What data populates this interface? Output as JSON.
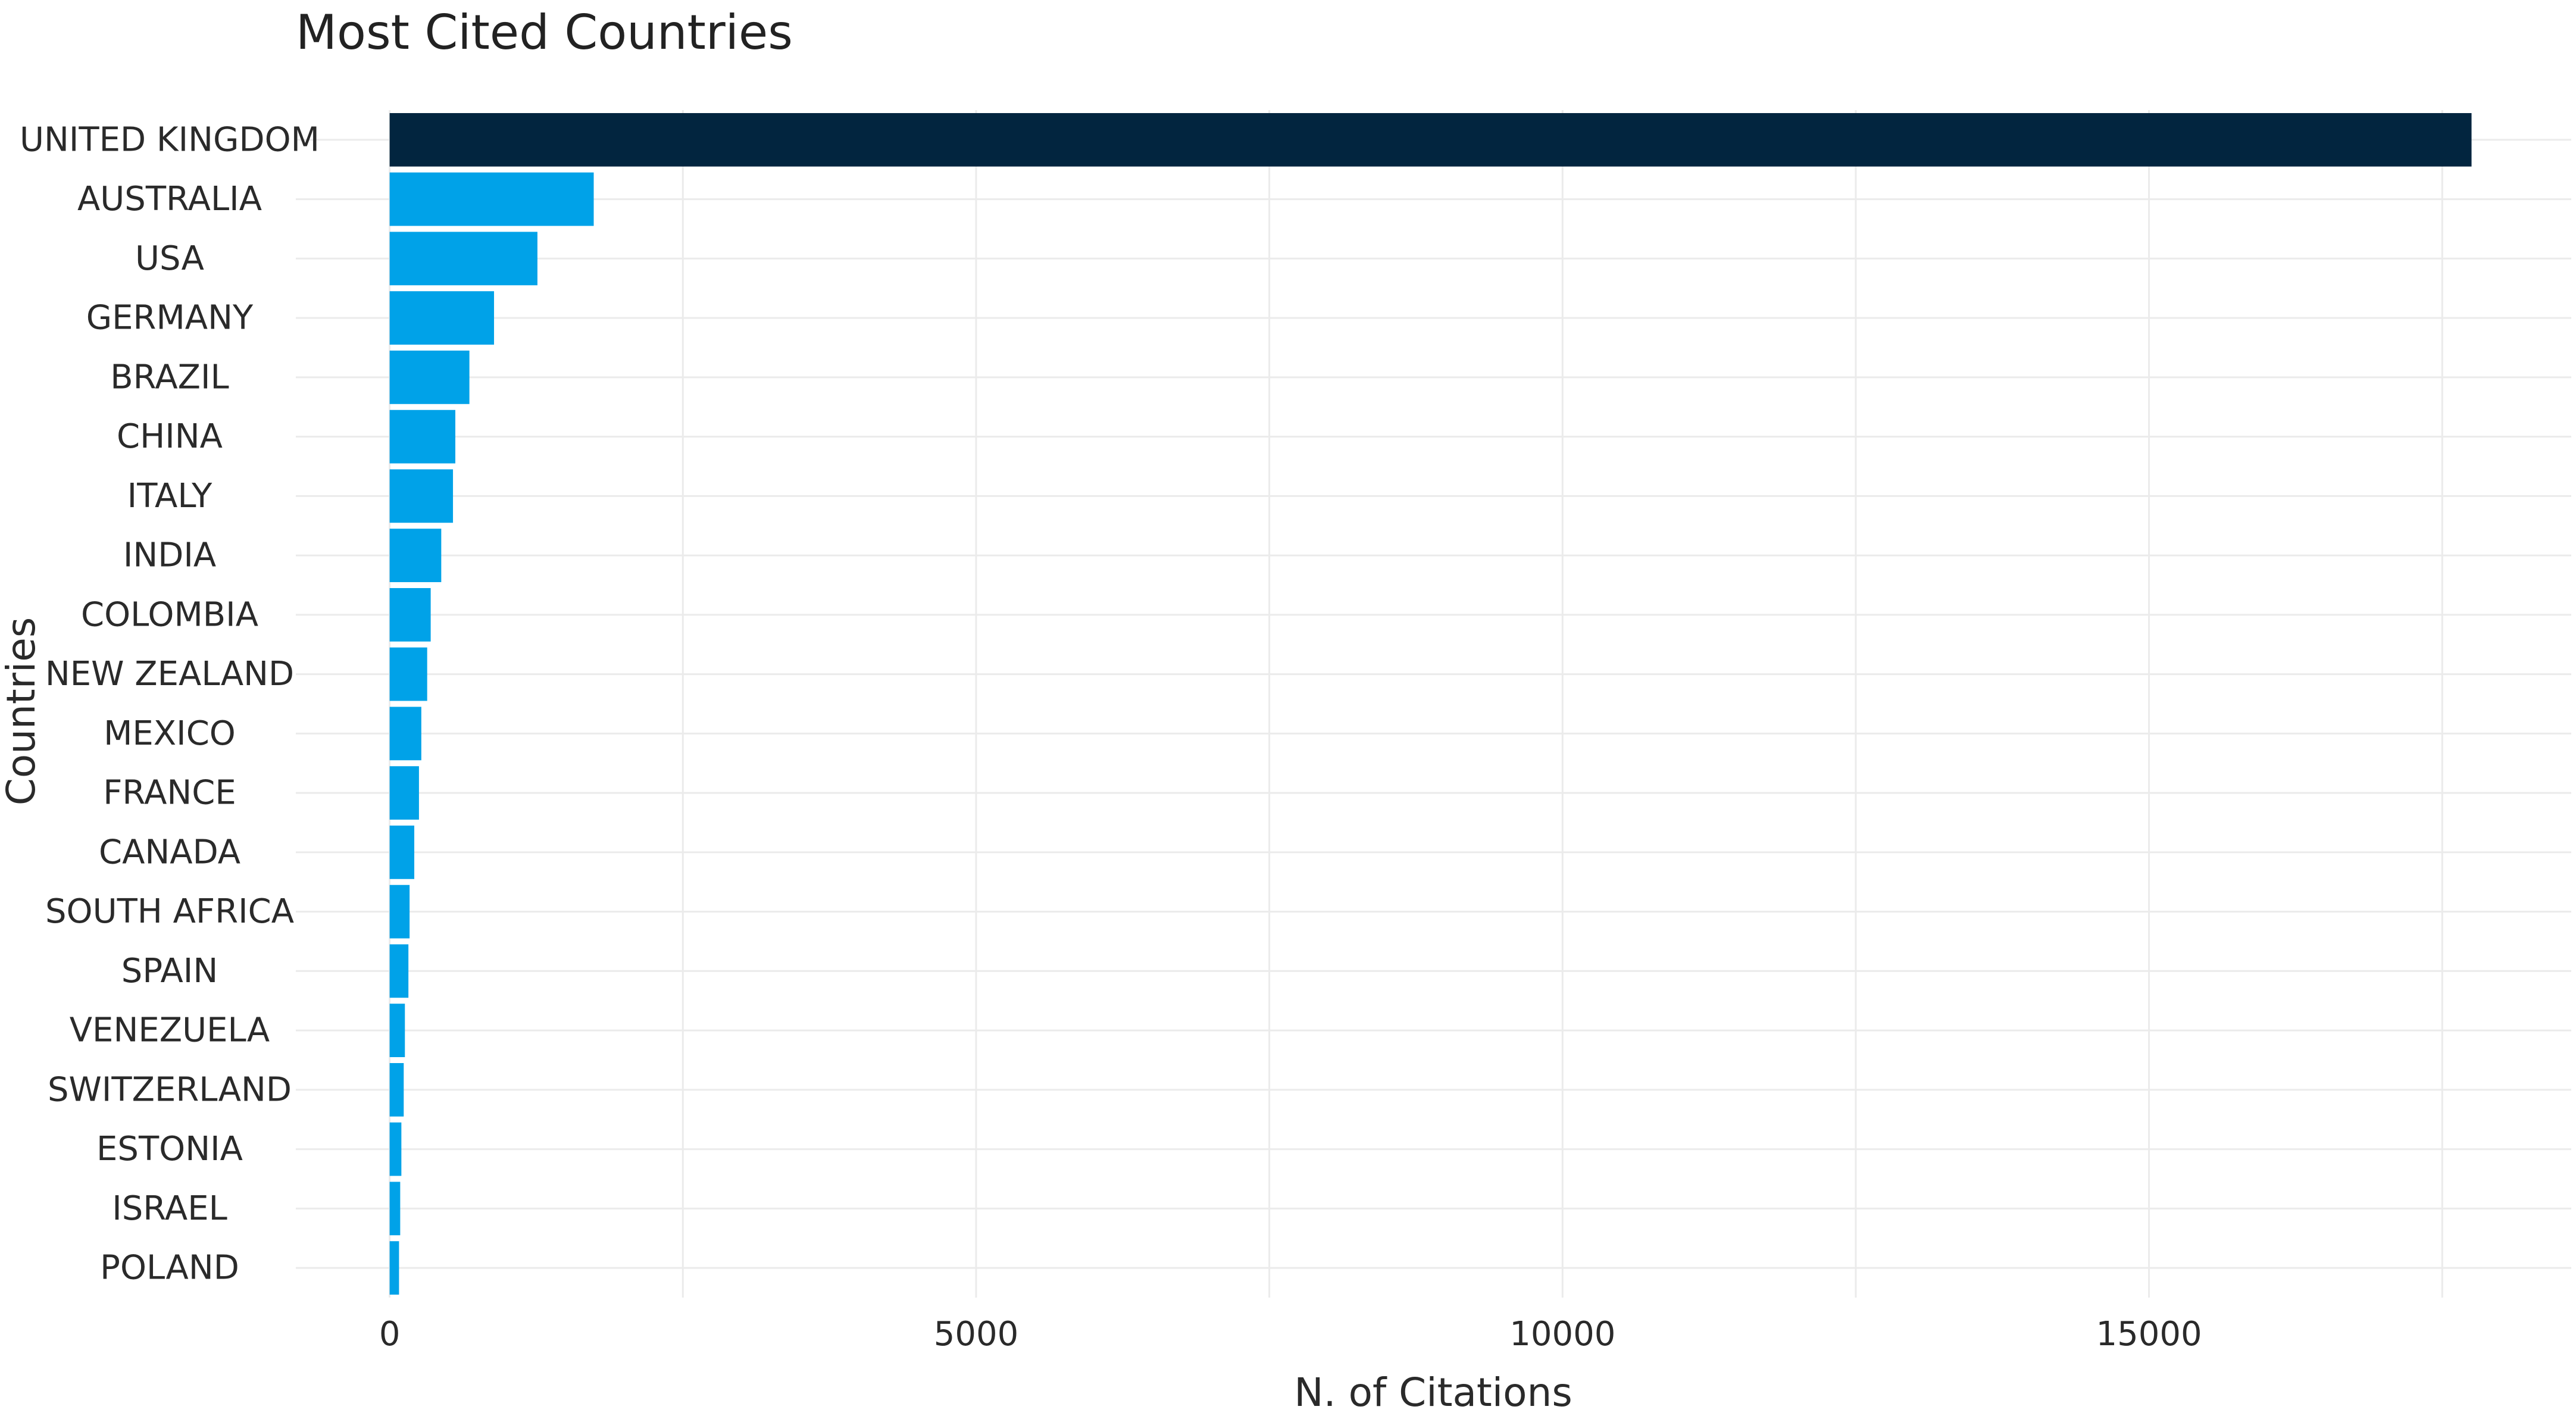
{
  "chart_data": {
    "type": "bar",
    "orientation": "horizontal",
    "title": "Most Cited Countries",
    "xlabel": "N. of Citations",
    "ylabel": "Countries",
    "categories": [
      "UNITED KINGDOM",
      "AUSTRALIA",
      "USA",
      "GERMANY",
      "BRAZIL",
      "CHINA",
      "ITALY",
      "INDIA",
      "COLOMBIA",
      "NEW ZEALAND",
      "MEXICO",
      "FRANCE",
      "CANADA",
      "SOUTH AFRICA",
      "SPAIN",
      "VENEZUELA",
      "SWITZERLAND",
      "ESTONIA",
      "ISRAEL",
      "POLAND"
    ],
    "values": [
      17750,
      1740,
      1260,
      890,
      680,
      560,
      540,
      440,
      350,
      320,
      270,
      250,
      210,
      170,
      160,
      130,
      120,
      100,
      90,
      80
    ],
    "bar_colors": [
      "#02253f",
      "#00a2e8",
      "#00a2e8",
      "#00a2e8",
      "#00a2e8",
      "#00a2e8",
      "#00a2e8",
      "#00a2e8",
      "#00a2e8",
      "#00a2e8",
      "#00a2e8",
      "#00a2e8",
      "#00a2e8",
      "#00a2e8",
      "#00a2e8",
      "#00a2e8",
      "#00a2e8",
      "#00a2e8",
      "#00a2e8",
      "#00a2e8"
    ],
    "xlim": [
      -800,
      18600
    ],
    "xticks": [
      0,
      5000,
      10000,
      15000
    ],
    "xtick_labels": [
      "0",
      "5000",
      "10000",
      "15000"
    ],
    "grid": true,
    "legend": "none"
  }
}
